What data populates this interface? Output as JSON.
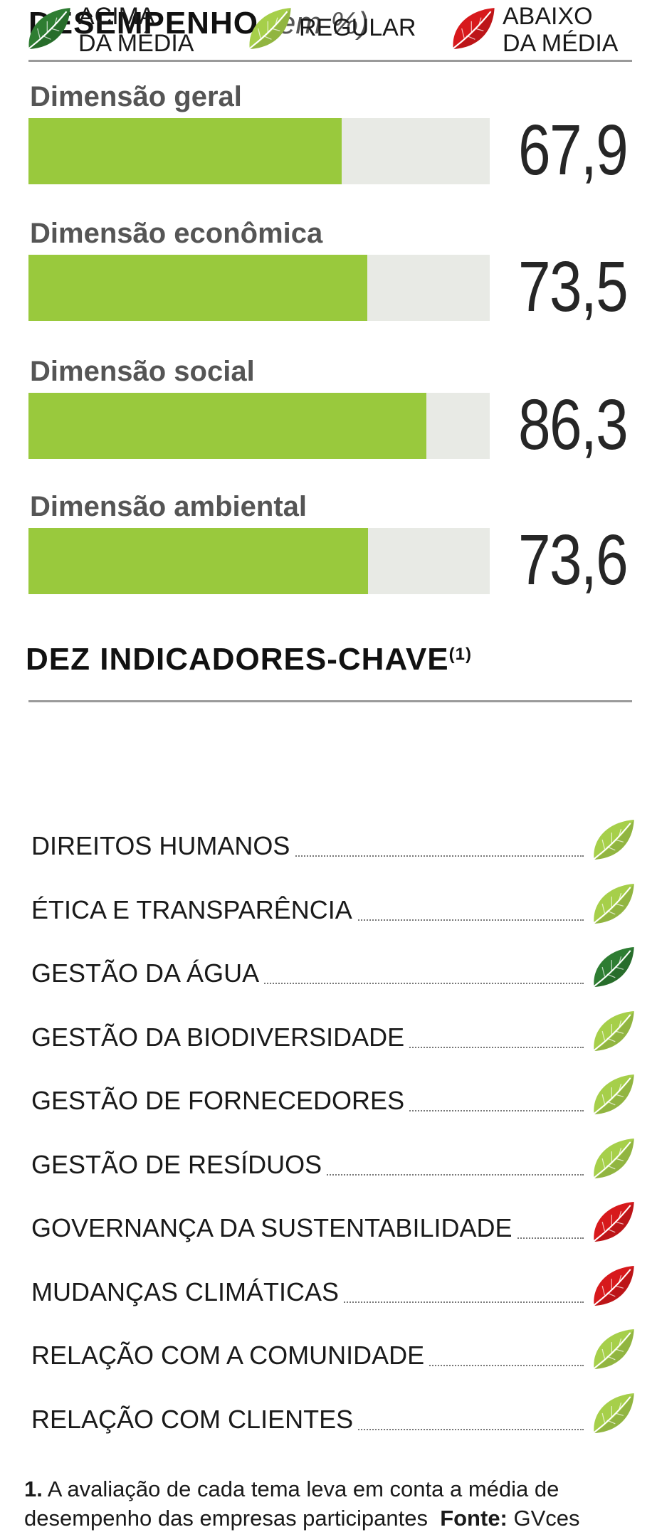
{
  "performance": {
    "title": "DESEMPENHO",
    "unit": "(em %)"
  },
  "chart_data": {
    "type": "bar",
    "categories": [
      "Dimensão geral",
      "Dimensão econômica",
      "Dimensão social",
      "Dimensão ambiental"
    ],
    "values": [
      67.9,
      73.5,
      86.3,
      73.6
    ],
    "value_labels": [
      "67,9",
      "73,5",
      "86,3",
      "73,6"
    ],
    "title": "DESEMPENHO",
    "unit": "(em %)",
    "xlim": [
      0,
      100
    ],
    "orientation": "horizontal",
    "grid": false,
    "colors": {
      "fill": "#99c93d",
      "track": "#e8eae5"
    }
  },
  "indicators": {
    "title": "DEZ INDICADORES-CHAVE",
    "footnote_marker": "(1)",
    "legend": [
      {
        "key": "above",
        "label_line1": "ACIMA",
        "label_line2": "DA MÉDIA",
        "icon": "leaf-dark-green-icon",
        "color": "#2e7d32"
      },
      {
        "key": "regular",
        "label_line1": "REGULAR",
        "label_line2": "",
        "icon": "leaf-light-green-icon",
        "color": "#a6cf4a"
      },
      {
        "key": "below",
        "label_line1": "ABAIXO",
        "label_line2": "DA MÉDIA",
        "icon": "leaf-red-icon",
        "color": "#d7191c"
      }
    ],
    "items": [
      {
        "label": "DIREITOS HUMANOS",
        "rating": "regular"
      },
      {
        "label": "ÉTICA E TRANSPARÊNCIA",
        "rating": "regular"
      },
      {
        "label": "GESTÃO DA ÁGUA",
        "rating": "above"
      },
      {
        "label": "GESTÃO DA BIODIVERSIDADE",
        "rating": "regular"
      },
      {
        "label": "GESTÃO DE FORNECEDORES",
        "rating": "regular"
      },
      {
        "label": "GESTÃO DE RESÍDUOS",
        "rating": "regular"
      },
      {
        "label": "GOVERNANÇA DA SUSTENTABILIDADE",
        "rating": "below"
      },
      {
        "label": "MUDANÇAS CLIMÁTICAS",
        "rating": "below"
      },
      {
        "label": "RELAÇÃO COM A COMUNIDADE",
        "rating": "regular"
      },
      {
        "label": "RELAÇÃO COM CLIENTES",
        "rating": "regular"
      }
    ]
  },
  "footnote": {
    "number": "1.",
    "line1": "A avaliação de cada tema leva em conta a média de",
    "line2": "desempenho das empresas participantes",
    "source_label": "Fonte:",
    "source": "GVces"
  }
}
